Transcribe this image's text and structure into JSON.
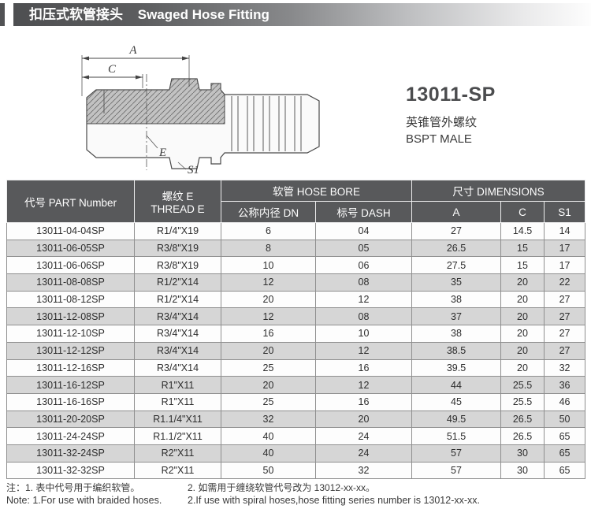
{
  "page_header": {
    "title_zh": "扣压式软管接头",
    "title_en": "Swaged Hose Fitting"
  },
  "product": {
    "model": "13011-SP",
    "type_zh": "英锥管外螺纹",
    "type_en": "BSPT MALE"
  },
  "drawing": {
    "labels": {
      "a": "A",
      "c": "C",
      "e": "E",
      "s1": "S1"
    }
  },
  "table": {
    "headers": {
      "part_number": "代号 PART Number",
      "thread_line1": "螺纹 E",
      "thread_line2": "THREAD E",
      "hose_bore_group": "软管 HOSE BORE",
      "dimensions_group": "尺寸 DIMENSIONS",
      "dn": "公称内径 DN",
      "dash": "标号 DASH",
      "a": "A",
      "c": "C",
      "s1": "S1"
    },
    "rows": [
      [
        "13011-04-04SP",
        "R1/4\"X19",
        "6",
        "04",
        "27",
        "14.5",
        "14"
      ],
      [
        "13011-06-05SP",
        "R3/8\"X19",
        "8",
        "05",
        "26.5",
        "15",
        "17"
      ],
      [
        "13011-06-06SP",
        "R3/8\"X19",
        "10",
        "06",
        "27.5",
        "15",
        "17"
      ],
      [
        "13011-08-08SP",
        "R1/2\"X14",
        "12",
        "08",
        "35",
        "20",
        "22"
      ],
      [
        "13011-08-12SP",
        "R1/2\"X14",
        "20",
        "12",
        "38",
        "20",
        "27"
      ],
      [
        "13011-12-08SP",
        "R3/4\"X14",
        "12",
        "08",
        "37",
        "20",
        "27"
      ],
      [
        "13011-12-10SP",
        "R3/4\"X14",
        "16",
        "10",
        "38",
        "20",
        "27"
      ],
      [
        "13011-12-12SP",
        "R3/4\"X14",
        "20",
        "12",
        "38.5",
        "20",
        "27"
      ],
      [
        "13011-12-16SP",
        "R3/4\"X14",
        "25",
        "16",
        "39.5",
        "20",
        "32"
      ],
      [
        "13011-16-12SP",
        "R1\"X11",
        "20",
        "12",
        "44",
        "25.5",
        "36"
      ],
      [
        "13011-16-16SP",
        "R1\"X11",
        "25",
        "16",
        "45",
        "25.5",
        "46"
      ],
      [
        "13011-20-20SP",
        "R1.1/4\"X11",
        "32",
        "20",
        "49.5",
        "26.5",
        "50"
      ],
      [
        "13011-24-24SP",
        "R1.1/2\"X11",
        "40",
        "24",
        "51.5",
        "26.5",
        "65"
      ],
      [
        "13011-32-24SP",
        "R2\"X11",
        "40",
        "24",
        "57",
        "30",
        "65"
      ],
      [
        "13011-32-32SP",
        "R2\"X11",
        "50",
        "32",
        "57",
        "30",
        "65"
      ]
    ]
  },
  "notes": {
    "zh_1": "注：1. 表中代号用于编织软管。",
    "zh_2": "2. 如需用于缠绕软管代号改为 13012-xx-xx。",
    "en_1": "Note: 1.For use with braided hoses.",
    "en_2": "2.If use with spiral hoses,hose fitting series number is 13012-xx-xx."
  },
  "colors": {
    "header_bar_dark": "#4e4f51",
    "table_header_bg": "#58595b",
    "alt_row_bg": "#d6d6d6"
  }
}
